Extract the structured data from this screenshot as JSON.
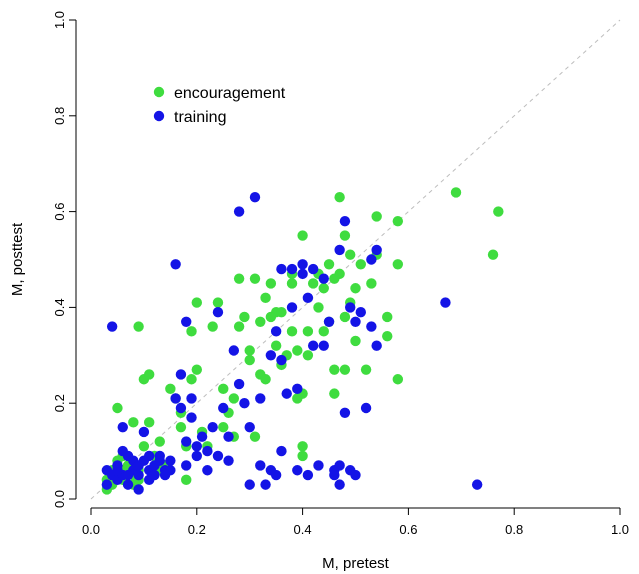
{
  "chart_data": {
    "type": "scatter",
    "title": "",
    "xlabel": "M, pretest",
    "ylabel": "M, posttest",
    "xlim": [
      0,
      1
    ],
    "ylim": [
      0,
      1
    ],
    "xticks": [
      0.0,
      0.2,
      0.4,
      0.6,
      0.8,
      1.0
    ],
    "yticks": [
      0.0,
      0.2,
      0.4,
      0.6,
      0.8,
      1.0
    ],
    "xtick_labels": [
      "0.0",
      "0.2",
      "0.4",
      "0.6",
      "0.8",
      "1.0"
    ],
    "ytick_labels": [
      "0.0",
      "0.2",
      "0.4",
      "0.6",
      "0.8",
      "1.0"
    ],
    "grid": false,
    "legend_position": "top-left",
    "reference_line": {
      "type": "identity",
      "style": "dashed",
      "color": "#bdbdbd"
    },
    "series": [
      {
        "name": "encouragement",
        "color": "#3fdc3f",
        "points": [
          [
            0.03,
            0.02
          ],
          [
            0.03,
            0.04
          ],
          [
            0.04,
            0.03
          ],
          [
            0.04,
            0.06
          ],
          [
            0.05,
            0.05
          ],
          [
            0.05,
            0.08
          ],
          [
            0.05,
            0.19
          ],
          [
            0.06,
            0.06
          ],
          [
            0.06,
            0.04
          ],
          [
            0.06,
            0.09
          ],
          [
            0.07,
            0.05
          ],
          [
            0.07,
            0.07
          ],
          [
            0.08,
            0.03
          ],
          [
            0.08,
            0.05
          ],
          [
            0.08,
            0.16
          ],
          [
            0.09,
            0.36
          ],
          [
            0.09,
            0.04
          ],
          [
            0.09,
            0.06
          ],
          [
            0.1,
            0.11
          ],
          [
            0.1,
            0.25
          ],
          [
            0.11,
            0.26
          ],
          [
            0.11,
            0.16
          ],
          [
            0.12,
            0.09
          ],
          [
            0.13,
            0.12
          ],
          [
            0.13,
            0.06
          ],
          [
            0.14,
            0.07
          ],
          [
            0.15,
            0.23
          ],
          [
            0.16,
            0.21
          ],
          [
            0.17,
            0.18
          ],
          [
            0.17,
            0.15
          ],
          [
            0.18,
            0.04
          ],
          [
            0.18,
            0.11
          ],
          [
            0.19,
            0.35
          ],
          [
            0.19,
            0.25
          ],
          [
            0.2,
            0.27
          ],
          [
            0.2,
            0.41
          ],
          [
            0.21,
            0.14
          ],
          [
            0.22,
            0.11
          ],
          [
            0.23,
            0.36
          ],
          [
            0.24,
            0.41
          ],
          [
            0.25,
            0.15
          ],
          [
            0.25,
            0.23
          ],
          [
            0.26,
            0.18
          ],
          [
            0.27,
            0.13
          ],
          [
            0.27,
            0.21
          ],
          [
            0.28,
            0.46
          ],
          [
            0.28,
            0.36
          ],
          [
            0.29,
            0.38
          ],
          [
            0.3,
            0.29
          ],
          [
            0.3,
            0.31
          ],
          [
            0.31,
            0.46
          ],
          [
            0.32,
            0.37
          ],
          [
            0.32,
            0.26
          ],
          [
            0.33,
            0.42
          ],
          [
            0.33,
            0.25
          ],
          [
            0.34,
            0.45
          ],
          [
            0.35,
            0.32
          ],
          [
            0.35,
            0.39
          ],
          [
            0.36,
            0.28
          ],
          [
            0.36,
            0.39
          ],
          [
            0.37,
            0.3
          ],
          [
            0.38,
            0.47
          ],
          [
            0.38,
            0.35
          ],
          [
            0.39,
            0.21
          ],
          [
            0.39,
            0.31
          ],
          [
            0.4,
            0.55
          ],
          [
            0.4,
            0.11
          ],
          [
            0.4,
            0.22
          ],
          [
            0.41,
            0.35
          ],
          [
            0.41,
            0.3
          ],
          [
            0.42,
            0.45
          ],
          [
            0.43,
            0.47
          ],
          [
            0.43,
            0.4
          ],
          [
            0.44,
            0.44
          ],
          [
            0.45,
            0.49
          ],
          [
            0.45,
            0.37
          ],
          [
            0.46,
            0.22
          ],
          [
            0.46,
            0.27
          ],
          [
            0.47,
            0.63
          ],
          [
            0.47,
            0.47
          ],
          [
            0.48,
            0.38
          ],
          [
            0.48,
            0.27
          ],
          [
            0.49,
            0.41
          ],
          [
            0.49,
            0.51
          ],
          [
            0.5,
            0.33
          ],
          [
            0.5,
            0.44
          ],
          [
            0.51,
            0.49
          ],
          [
            0.52,
            0.27
          ],
          [
            0.53,
            0.45
          ],
          [
            0.54,
            0.59
          ],
          [
            0.54,
            0.51
          ],
          [
            0.56,
            0.38
          ],
          [
            0.56,
            0.34
          ],
          [
            0.58,
            0.58
          ],
          [
            0.58,
            0.49
          ],
          [
            0.58,
            0.25
          ],
          [
            0.69,
            0.64
          ],
          [
            0.76,
            0.51
          ],
          [
            0.77,
            0.6
          ],
          [
            0.4,
            0.09
          ],
          [
            0.31,
            0.13
          ],
          [
            0.44,
            0.35
          ],
          [
            0.48,
            0.55
          ],
          [
            0.46,
            0.46
          ],
          [
            0.38,
            0.45
          ],
          [
            0.34,
            0.38
          ]
        ]
      },
      {
        "name": "training",
        "color": "#1414e6",
        "points": [
          [
            0.03,
            0.03
          ],
          [
            0.03,
            0.06
          ],
          [
            0.04,
            0.05
          ],
          [
            0.04,
            0.36
          ],
          [
            0.05,
            0.07
          ],
          [
            0.05,
            0.04
          ],
          [
            0.06,
            0.1
          ],
          [
            0.06,
            0.15
          ],
          [
            0.06,
            0.05
          ],
          [
            0.07,
            0.09
          ],
          [
            0.07,
            0.03
          ],
          [
            0.08,
            0.06
          ],
          [
            0.08,
            0.08
          ],
          [
            0.09,
            0.02
          ],
          [
            0.09,
            0.05
          ],
          [
            0.1,
            0.08
          ],
          [
            0.1,
            0.14
          ],
          [
            0.11,
            0.06
          ],
          [
            0.11,
            0.04
          ],
          [
            0.12,
            0.07
          ],
          [
            0.12,
            0.05
          ],
          [
            0.13,
            0.09
          ],
          [
            0.14,
            0.06
          ],
          [
            0.14,
            0.05
          ],
          [
            0.15,
            0.08
          ],
          [
            0.16,
            0.49
          ],
          [
            0.16,
            0.21
          ],
          [
            0.17,
            0.19
          ],
          [
            0.17,
            0.26
          ],
          [
            0.18,
            0.37
          ],
          [
            0.18,
            0.07
          ],
          [
            0.19,
            0.21
          ],
          [
            0.19,
            0.17
          ],
          [
            0.2,
            0.11
          ],
          [
            0.2,
            0.09
          ],
          [
            0.21,
            0.13
          ],
          [
            0.22,
            0.1
          ],
          [
            0.22,
            0.06
          ],
          [
            0.23,
            0.15
          ],
          [
            0.24,
            0.39
          ],
          [
            0.24,
            0.09
          ],
          [
            0.25,
            0.19
          ],
          [
            0.26,
            0.08
          ],
          [
            0.27,
            0.31
          ],
          [
            0.28,
            0.6
          ],
          [
            0.28,
            0.24
          ],
          [
            0.29,
            0.2
          ],
          [
            0.3,
            0.15
          ],
          [
            0.3,
            0.03
          ],
          [
            0.31,
            0.63
          ],
          [
            0.32,
            0.07
          ],
          [
            0.32,
            0.21
          ],
          [
            0.33,
            0.03
          ],
          [
            0.34,
            0.06
          ],
          [
            0.34,
            0.3
          ],
          [
            0.35,
            0.35
          ],
          [
            0.35,
            0.05
          ],
          [
            0.36,
            0.48
          ],
          [
            0.36,
            0.29
          ],
          [
            0.37,
            0.22
          ],
          [
            0.38,
            0.48
          ],
          [
            0.38,
            0.4
          ],
          [
            0.39,
            0.23
          ],
          [
            0.39,
            0.06
          ],
          [
            0.4,
            0.49
          ],
          [
            0.4,
            0.47
          ],
          [
            0.41,
            0.42
          ],
          [
            0.41,
            0.05
          ],
          [
            0.42,
            0.48
          ],
          [
            0.42,
            0.32
          ],
          [
            0.43,
            0.07
          ],
          [
            0.44,
            0.46
          ],
          [
            0.44,
            0.32
          ],
          [
            0.45,
            0.37
          ],
          [
            0.46,
            0.06
          ],
          [
            0.46,
            0.05
          ],
          [
            0.47,
            0.52
          ],
          [
            0.47,
            0.07
          ],
          [
            0.47,
            0.03
          ],
          [
            0.48,
            0.58
          ],
          [
            0.48,
            0.18
          ],
          [
            0.49,
            0.4
          ],
          [
            0.49,
            0.06
          ],
          [
            0.5,
            0.37
          ],
          [
            0.5,
            0.05
          ],
          [
            0.51,
            0.39
          ],
          [
            0.52,
            0.19
          ],
          [
            0.53,
            0.36
          ],
          [
            0.53,
            0.5
          ],
          [
            0.54,
            0.32
          ],
          [
            0.54,
            0.52
          ],
          [
            0.67,
            0.41
          ],
          [
            0.73,
            0.03
          ],
          [
            0.15,
            0.06
          ],
          [
            0.13,
            0.08
          ],
          [
            0.09,
            0.07
          ],
          [
            0.07,
            0.05
          ],
          [
            0.05,
            0.06
          ],
          [
            0.11,
            0.09
          ],
          [
            0.26,
            0.13
          ],
          [
            0.18,
            0.12
          ],
          [
            0.36,
            0.1
          ]
        ]
      }
    ]
  }
}
